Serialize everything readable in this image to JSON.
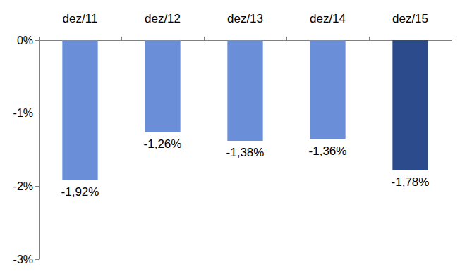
{
  "chart_data": {
    "type": "bar",
    "categories": [
      "dez/11",
      "dez/12",
      "dez/13",
      "dez/14",
      "dez/15"
    ],
    "values": [
      -1.92,
      -1.26,
      -1.38,
      -1.36,
      -1.78
    ],
    "value_labels": [
      "-1,92%",
      "-1,26%",
      "-1,38%",
      "-1,36%",
      "-1,78%"
    ],
    "colors": [
      "#6a8ed8",
      "#6a8ed8",
      "#6a8ed8",
      "#6a8ed8",
      "#2b4b8c"
    ],
    "ylim": [
      -3,
      0
    ],
    "yticks": [
      {
        "value": -3,
        "label": "-3%"
      },
      {
        "value": -2,
        "label": "-2%"
      },
      {
        "value": -1,
        "label": "-1%"
      },
      {
        "value": 0,
        "label": "0%"
      }
    ],
    "grid": false,
    "data_labels": true
  }
}
